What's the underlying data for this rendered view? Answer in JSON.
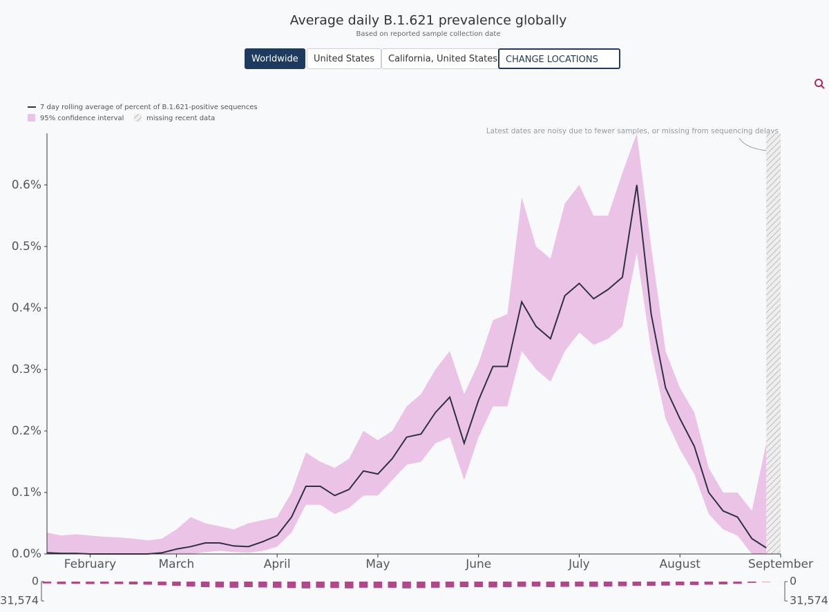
{
  "chart_data": {
    "type": "line",
    "title": "Average daily B.1.621 prevalence globally",
    "subtitle": "Based on reported sample collection date",
    "categories": [
      null,
      null,
      null,
      "February",
      null,
      null,
      null,
      null,
      null,
      "March",
      null,
      null,
      null,
      null,
      null,
      null,
      "April",
      null,
      null,
      null,
      null,
      null,
      null,
      "May",
      null,
      null,
      null,
      null,
      null,
      null,
      "June",
      null,
      null,
      null,
      null,
      null,
      null,
      "July",
      null,
      null,
      null,
      null,
      null,
      null,
      "August",
      null,
      null,
      null,
      null,
      null,
      null,
      "September"
    ],
    "series": [
      {
        "name": "7 day rolling average of percent of B.1.621-positive sequences",
        "color": "#2c3041",
        "values": [
          0.002,
          0.001,
          0.001,
          0,
          0,
          0,
          0,
          0,
          0.002,
          0.008,
          0.012,
          0.018,
          0.018,
          0.013,
          0.012,
          0.02,
          0.03,
          0.06,
          0.11,
          0.11,
          0.095,
          0.105,
          0.135,
          0.13,
          0.155,
          0.19,
          0.195,
          0.23,
          0.255,
          0.18,
          0.25,
          0.305,
          0.305,
          0.41,
          0.37,
          0.35,
          0.42,
          0.44,
          0.415,
          0.43,
          0.45,
          0.6,
          0.39,
          0.27,
          0.22,
          0.175,
          0.1,
          0.07,
          0.06,
          0.025,
          0.01,
          null
        ]
      }
    ],
    "band": {
      "name": "95% confidence interval",
      "color": "#ebc3e6",
      "lower": [
        0,
        0,
        0,
        0,
        0,
        0,
        0,
        0,
        0,
        0,
        0,
        0.003,
        0.005,
        0.003,
        0.002,
        0.005,
        0.012,
        0.035,
        0.08,
        0.08,
        0.065,
        0.075,
        0.095,
        0.095,
        0.12,
        0.145,
        0.15,
        0.18,
        0.19,
        0.12,
        0.19,
        0.24,
        0.24,
        0.33,
        0.3,
        0.28,
        0.33,
        0.36,
        0.34,
        0.35,
        0.37,
        0.49,
        0.33,
        0.22,
        0.17,
        0.13,
        0.065,
        0.04,
        0.03,
        0,
        0,
        null
      ],
      "upper": [
        0.035,
        0.03,
        0.032,
        0.03,
        0.028,
        0.027,
        0.025,
        0.022,
        0.025,
        0.04,
        0.06,
        0.05,
        0.045,
        0.04,
        0.05,
        0.055,
        0.06,
        0.1,
        0.165,
        0.15,
        0.14,
        0.155,
        0.2,
        0.185,
        0.2,
        0.24,
        0.26,
        0.3,
        0.33,
        0.26,
        0.31,
        0.38,
        0.39,
        0.58,
        0.5,
        0.48,
        0.57,
        0.6,
        0.55,
        0.55,
        0.62,
        0.684,
        0.5,
        0.33,
        0.27,
        0.23,
        0.14,
        0.1,
        0.1,
        0.07,
        0.18,
        null
      ]
    },
    "missing_label": "missing recent data",
    "annotation": "Latest dates are noisy due to fewer samples, or missing from sequencing delays",
    "ylim": [
      0,
      0.684
    ],
    "yticks": [
      {
        "value": 0,
        "label": "0.0%"
      },
      {
        "value": 0.1,
        "label": "0.1%"
      },
      {
        "value": 0.2,
        "label": "0.2%"
      },
      {
        "value": 0.3,
        "label": "0.3%"
      },
      {
        "value": 0.4,
        "label": "0.4%"
      },
      {
        "value": 0.5,
        "label": "0.5%"
      },
      {
        "value": 0.6,
        "label": "0.6%"
      }
    ],
    "samples": {
      "color": "#9c1a6b",
      "ylim": [
        0,
        31574
      ],
      "yticks": [
        0,
        {
          "value": 31574,
          "label": "31,574"
        }
      ],
      "values": [
        3000,
        4000,
        3500,
        4000,
        3500,
        4000,
        4500,
        5000,
        6000,
        7000,
        8000,
        9000,
        9500,
        10000,
        9000,
        9500,
        10000,
        10500,
        11000,
        10000,
        10500,
        11000,
        10000,
        10500,
        10000,
        11000,
        10500,
        10000,
        9500,
        9000,
        9000,
        9500,
        9000,
        8500,
        8000,
        9000,
        8500,
        8000,
        8500,
        8000,
        7500,
        7000,
        7000,
        6500,
        6000,
        5500,
        5000,
        4500,
        3500,
        2000,
        500,
        null
      ]
    }
  },
  "buttons": [
    "Worldwide",
    "United States",
    "California, United States",
    "CHANGE LOCATIONS"
  ]
}
